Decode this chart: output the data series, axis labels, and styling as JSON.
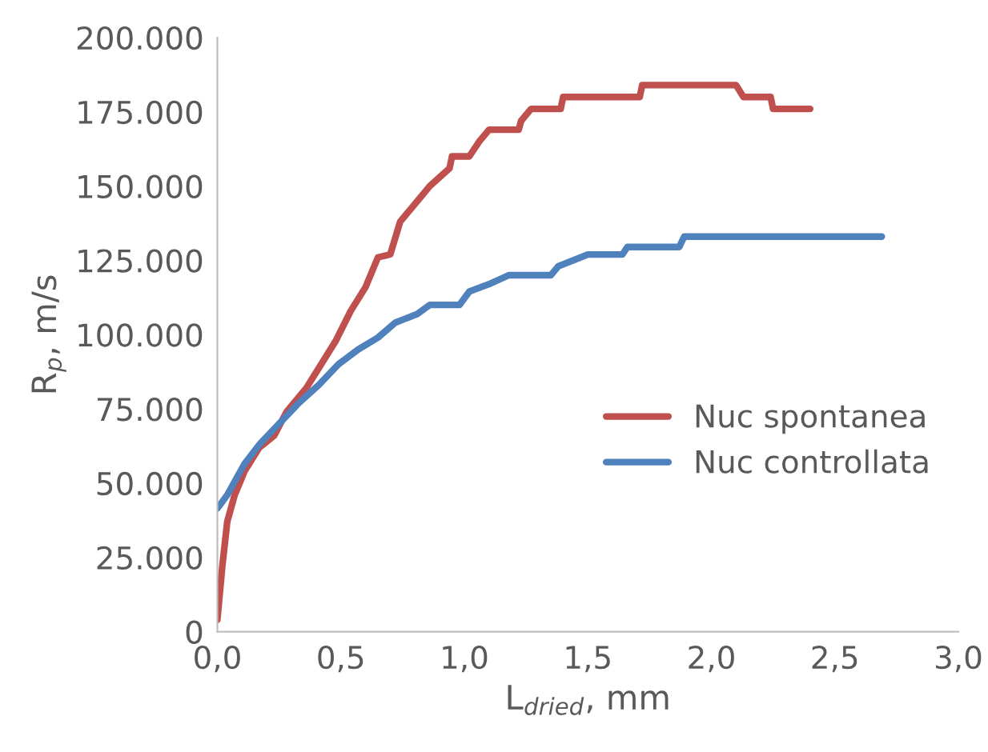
{
  "chart_data": {
    "type": "line",
    "xlabel": "L$_{dried}$, mm",
    "ylabel": "R$_{p}$, m/s",
    "xlim": [
      0,
      3
    ],
    "xticks": [
      {
        "value": 0,
        "label": "0,0"
      },
      {
        "value": 0.5,
        "label": "0,5"
      },
      {
        "value": 1,
        "label": "1,0"
      },
      {
        "value": 1.5,
        "label": "1,5"
      },
      {
        "value": 2,
        "label": "2,0"
      },
      {
        "value": 2.5,
        "label": "2,5"
      },
      {
        "value": 3,
        "label": "3,0"
      }
    ],
    "ylim": [
      0,
      200000
    ],
    "yticks": [
      0,
      {
        "value": 25000,
        "label": "25.000"
      },
      {
        "value": 50000,
        "label": "50.000"
      },
      {
        "value": 75000,
        "label": "75.000"
      },
      {
        "value": 100000,
        "label": "100.000"
      },
      {
        "value": 125000,
        "label": "125.000"
      },
      {
        "value": 150000,
        "label": "150.000"
      },
      {
        "value": 175000,
        "label": "175.000"
      },
      {
        "value": 200000,
        "label": "200.000"
      }
    ],
    "grid": false,
    "legend": "right",
    "marker": "none",
    "line_style": "solid",
    "series": [
      {
        "name": "Nuc spontanea",
        "color": "#c0504d",
        "x": [
          0,
          0.02,
          0.04,
          0.07,
          0.11,
          0.17,
          0.23,
          0.28,
          0.36,
          0.42,
          0.48,
          0.54,
          0.6,
          0.65,
          0.7,
          0.74,
          0.81,
          0.86,
          0.94,
          0.95,
          1.02,
          1.06,
          1.1,
          1.22,
          1.23,
          1.27,
          1.39,
          1.4,
          1.71,
          1.72,
          2.1,
          2.13,
          2.24,
          2.25,
          2.4
        ],
        "values": [
          4000,
          22000,
          37000,
          46000,
          54000,
          62000,
          66000,
          74000,
          82000,
          90000,
          98000,
          108000,
          116000,
          126000,
          127000,
          138000,
          145000,
          150000,
          156000,
          160000,
          160000,
          165000,
          169000,
          169000,
          172000,
          176000,
          176000,
          180000,
          180000,
          184000,
          184000,
          180000,
          180000,
          176000,
          176000
        ]
      },
      {
        "name": "Nuc controllata",
        "color": "#4f81bd",
        "x": [
          0,
          0.04,
          0.11,
          0.17,
          0.25,
          0.33,
          0.41,
          0.49,
          0.57,
          0.65,
          0.72,
          0.81,
          0.86,
          0.98,
          1.02,
          1.1,
          1.18,
          1.35,
          1.38,
          1.5,
          1.64,
          1.66,
          1.87,
          1.89,
          2.69
        ],
        "values": [
          41500,
          46000,
          56500,
          63000,
          70000,
          77000,
          83000,
          90000,
          95000,
          99000,
          104000,
          107000,
          110000,
          110000,
          114500,
          117000,
          120000,
          120000,
          123000,
          127000,
          127000,
          129500,
          129500,
          133000,
          133000
        ]
      }
    ]
  }
}
